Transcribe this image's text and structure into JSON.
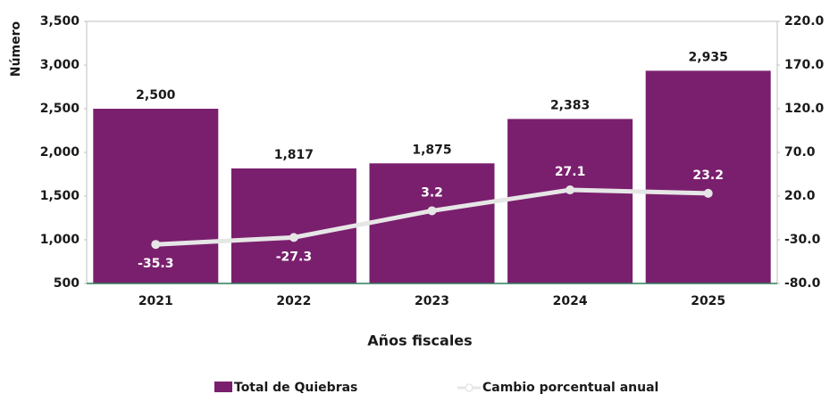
{
  "chart_data": {
    "type": "bar",
    "categories": [
      "2021",
      "2022",
      "2023",
      "2024",
      "2025"
    ],
    "series": [
      {
        "name": "Total de Quiebras",
        "type": "bar",
        "color": "#7a1f6e",
        "values": [
          2500,
          1817,
          1875,
          2383,
          2935
        ],
        "value_labels": [
          "2,500",
          "1,817",
          "1,875",
          "2,383",
          "2,935"
        ]
      },
      {
        "name": "Cambio porcentual anual",
        "type": "line",
        "axis": "y2",
        "color": "#e6e6e6",
        "values": [
          -35.3,
          -27.3,
          3.2,
          27.1,
          23.2
        ]
      }
    ],
    "y_label": "Número",
    "x_label": "Años fiscales",
    "ylim": [
      500,
      3500
    ],
    "yticks": [
      {
        "value": 500,
        "label": "500"
      },
      {
        "value": 1000,
        "label": "1,000"
      },
      {
        "value": 1500,
        "label": "1,500"
      },
      {
        "value": 2000,
        "label": "2,000"
      },
      {
        "value": 2500,
        "label": "2,500"
      },
      {
        "value": 3000,
        "label": "3,000"
      },
      {
        "value": 3500,
        "label": "3,500"
      }
    ],
    "y2lim": [
      -80,
      220
    ],
    "y2ticks": [
      {
        "value": -80,
        "label": "-80.0"
      },
      {
        "value": -30,
        "label": "-30.0"
      },
      {
        "value": 20,
        "label": "20.0"
      },
      {
        "value": 70,
        "label": "70.0"
      },
      {
        "value": 120,
        "label": "120.0"
      },
      {
        "value": 170,
        "label": "170.0"
      },
      {
        "value": 220,
        "label": "220.0"
      }
    ],
    "legend": "bottom"
  }
}
